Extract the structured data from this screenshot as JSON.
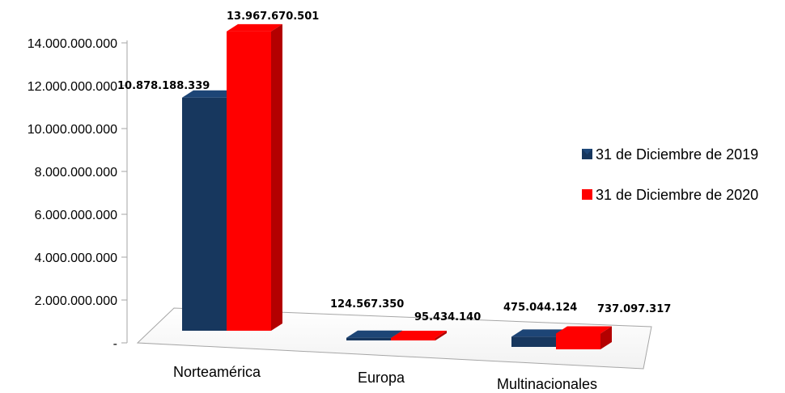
{
  "chart_data": {
    "type": "bar",
    "title": "",
    "xlabel": "",
    "ylabel": "",
    "categories": [
      "Norteamérica",
      "Europa",
      "Multinacionales"
    ],
    "series": [
      {
        "name": "31 de Diciembre de 2019",
        "color": "#17375e",
        "values": [
          10878188339,
          124567350,
          475044124
        ],
        "labels": [
          "10.878.188.339",
          "124.567.350",
          "475.044.124"
        ]
      },
      {
        "name": "31 de Diciembre de 2020",
        "color": "#ff0000",
        "values": [
          13967670501,
          95434140,
          737097317
        ],
        "labels": [
          "13.967.670.501",
          "95.434.140",
          "737.097.317"
        ]
      }
    ],
    "ylim": [
      0,
      14000000000
    ],
    "yticks": [
      {
        "value": 0,
        "label": "-"
      },
      {
        "value": 2000000000,
        "label": "2.000.000.000"
      },
      {
        "value": 4000000000,
        "label": "4.000.000.000"
      },
      {
        "value": 6000000000,
        "label": "6.000.000.000"
      },
      {
        "value": 8000000000,
        "label": "8.000.000.000"
      },
      {
        "value": 10000000000,
        "label": "10.000.000.000"
      },
      {
        "value": 12000000000,
        "label": "12.000.000.000"
      },
      {
        "value": 14000000000,
        "label": "14.000.000.000"
      }
    ],
    "grid": false,
    "legend_position": "right",
    "style": "3d-bar"
  }
}
